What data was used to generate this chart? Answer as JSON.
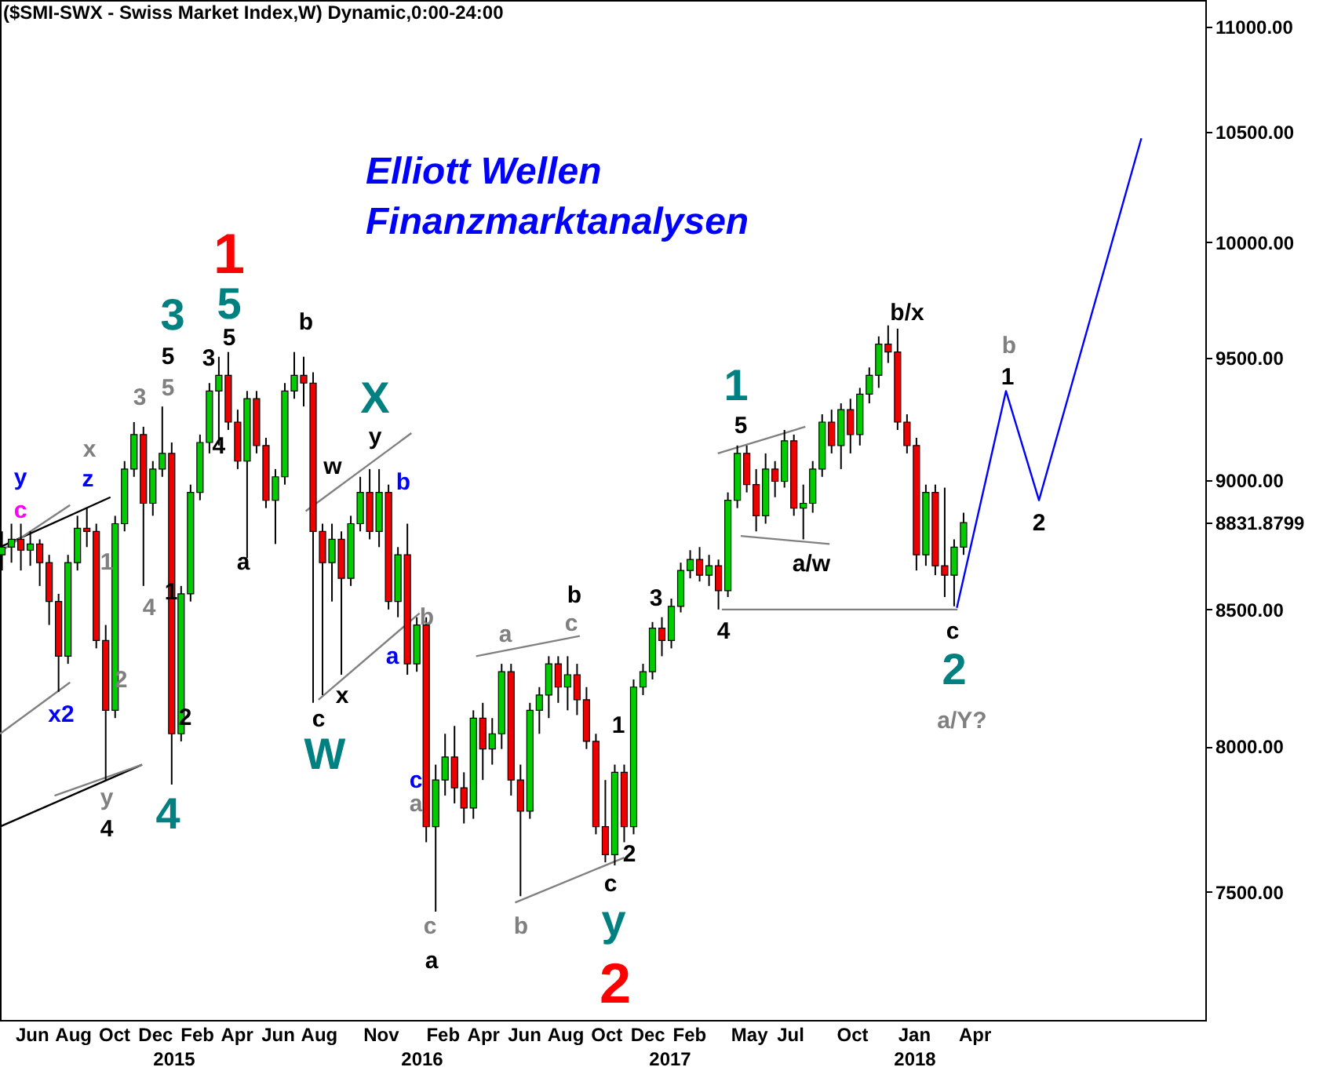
{
  "chart_data": {
    "type": "candlestick",
    "title": "($SMI-SWX - Swiss Market Index,W) Dynamic,0:00-24:00",
    "log": true,
    "grid": false,
    "xlim": [
      "2014-04-15",
      "2019-03-10"
    ],
    "xticks": [
      {
        "value": "2014-06-01",
        "label": "Jun"
      },
      {
        "value": "2014-08-01",
        "label": "Aug"
      },
      {
        "value": "2014-10-01",
        "label": "Oct"
      },
      {
        "value": "2014-12-01",
        "label": "Dec"
      },
      {
        "value": "2015-02-01",
        "label": "Feb"
      },
      {
        "value": "2015-04-01",
        "label": "Apr"
      },
      {
        "value": "2015-06-01",
        "label": "Jun"
      },
      {
        "value": "2015-08-01",
        "label": "Aug"
      },
      {
        "value": "2015-11-01",
        "label": "Nov"
      },
      {
        "value": "2016-02-01",
        "label": "Feb"
      },
      {
        "value": "2016-04-01",
        "label": "Apr"
      },
      {
        "value": "2016-06-01",
        "label": "Jun"
      },
      {
        "value": "2016-08-01",
        "label": "Aug"
      },
      {
        "value": "2016-10-01",
        "label": "Oct"
      },
      {
        "value": "2016-12-01",
        "label": "Dec"
      },
      {
        "value": "2017-02-01",
        "label": "Feb"
      },
      {
        "value": "2017-05-01",
        "label": "May"
      },
      {
        "value": "2017-07-01",
        "label": "Jul"
      },
      {
        "value": "2017-10-01",
        "label": "Oct"
      },
      {
        "value": "2018-01-01",
        "label": "Jan"
      },
      {
        "value": "2018-04-01",
        "label": "Apr"
      }
    ],
    "ylim": [
      7087,
      11131
    ],
    "yticks": [
      {
        "value": 7500,
        "label": "7500.00"
      },
      {
        "value": 8000,
        "label": "8000.00"
      },
      {
        "value": 8500,
        "label": "8500.00"
      },
      {
        "value": 8831.8799,
        "label": "8831.8799"
      },
      {
        "value": 9000,
        "label": "9000.00"
      },
      {
        "value": 9500,
        "label": "9500.00"
      },
      {
        "value": 10000,
        "label": "10000.00"
      },
      {
        "value": 10500,
        "label": "10500.00"
      },
      {
        "value": 11000,
        "label": "11000.00"
      }
    ],
    "series": [
      {
        "type": "line",
        "color": "#000000",
        "x": [
          "2014-04-15",
          "2014-09-26"
        ],
        "values": [
          8737,
          8932
        ]
      },
      {
        "type": "line",
        "color": "#808080",
        "x": [
          "2014-04-15",
          "2014-07-28"
        ],
        "values": [
          8719,
          8901
        ]
      },
      {
        "type": "line",
        "color": "#000000",
        "x": [
          "2014-04-15",
          "2014-11-12"
        ],
        "values": [
          7720,
          7935
        ]
      },
      {
        "type": "line",
        "color": "#808080",
        "x": [
          "2014-04-15",
          "2014-07-28"
        ],
        "values": [
          8044,
          8229
        ]
      },
      {
        "type": "line",
        "color": "#808080",
        "x": [
          "2014-07-05",
          "2014-11-12"
        ],
        "values": [
          7827,
          7935
        ]
      },
      {
        "type": "line",
        "color": "#808080",
        "x": [
          "2015-07-13",
          "2015-12-17"
        ],
        "values": [
          8877,
          9189
        ]
      },
      {
        "type": "line",
        "color": "#808080",
        "x": [
          "2015-08-01",
          "2015-12-29"
        ],
        "values": [
          8166,
          8485
        ]
      },
      {
        "type": "line",
        "color": "#808080",
        "x": [
          "2016-03-22",
          "2016-08-23"
        ],
        "values": [
          8325,
          8400
        ]
      },
      {
        "type": "line",
        "color": "#808080",
        "x": [
          "2016-05-19",
          "2016-10-28"
        ],
        "values": [
          7465,
          7615
        ]
      },
      {
        "type": "line",
        "color": "#808080",
        "x": [
          "2017-03-16",
          "2017-07-24"
        ],
        "values": [
          9107,
          9215
        ]
      },
      {
        "type": "line",
        "color": "#808080",
        "x": [
          "2017-04-19",
          "2017-08-29"
        ],
        "values": [
          8780,
          8749
        ]
      },
      {
        "type": "line",
        "color": "#808080",
        "x": [
          "2017-03-22",
          "2018-03-07"
        ],
        "values": [
          8499,
          8499
        ]
      },
      {
        "type": "line",
        "color": "#0000ff",
        "x": [
          "2018-03-06",
          "2018-05-18",
          "2018-07-06",
          "2018-12-05"
        ],
        "values": [
          8505,
          9362,
          8920,
          10470
        ]
      },
      {
        "x": [
          "2014-04-18",
          "2014-05-02",
          "2014-05-16",
          "2014-05-30",
          "2014-06-13",
          "2014-06-27",
          "2014-07-11",
          "2014-07-25",
          "2014-08-08",
          "2014-08-22",
          "2014-09-05",
          "2014-09-19",
          "2014-10-03",
          "2014-10-17",
          "2014-10-31",
          "2014-11-14",
          "2014-11-28",
          "2014-12-12",
          "2014-12-26",
          "2015-01-09",
          "2015-01-23",
          "2015-02-06",
          "2015-02-20",
          "2015-03-06",
          "2015-03-20",
          "2015-04-03",
          "2015-04-17",
          "2015-05-01",
          "2015-05-15",
          "2015-05-29",
          "2015-06-12",
          "2015-06-26",
          "2015-07-10",
          "2015-07-24",
          "2015-08-07",
          "2015-08-21",
          "2015-09-04",
          "2015-09-18",
          "2015-10-02",
          "2015-10-16",
          "2015-10-30",
          "2015-11-13",
          "2015-11-27",
          "2015-12-11",
          "2015-12-25",
          "2016-01-08",
          "2016-01-22",
          "2016-02-05",
          "2016-02-19",
          "2016-03-04",
          "2016-03-18",
          "2016-04-01",
          "2016-04-15",
          "2016-04-29",
          "2016-05-13",
          "2016-05-27",
          "2016-06-10",
          "2016-06-24",
          "2016-07-08",
          "2016-07-22",
          "2016-08-05",
          "2016-08-19",
          "2016-09-02",
          "2016-09-16",
          "2016-09-30",
          "2016-10-14",
          "2016-10-28",
          "2016-11-11",
          "2016-11-25",
          "2016-12-09",
          "2016-12-23",
          "2017-01-06",
          "2017-01-20",
          "2017-02-03",
          "2017-02-17",
          "2017-03-03",
          "2017-03-17",
          "2017-03-31",
          "2017-04-14",
          "2017-04-28",
          "2017-05-12",
          "2017-05-26",
          "2017-06-09",
          "2017-06-23",
          "2017-07-07",
          "2017-07-21",
          "2017-08-04",
          "2017-08-18",
          "2017-09-01",
          "2017-09-15",
          "2017-09-29",
          "2017-10-13",
          "2017-10-27",
          "2017-11-10",
          "2017-11-24",
          "2017-12-08",
          "2017-12-22",
          "2018-01-05",
          "2018-01-19",
          "2018-02-02",
          "2018-02-16",
          "2018-03-02",
          "2018-03-16"
        ],
        "ohlc": [
          [
            8707,
            8798,
            8647,
            8737
          ],
          [
            8737,
            8828,
            8677,
            8767
          ],
          [
            8767,
            8828,
            8647,
            8725
          ],
          [
            8725,
            8798,
            8665,
            8749
          ],
          [
            8749,
            8767,
            8588,
            8677
          ],
          [
            8677,
            8707,
            8441,
            8529
          ],
          [
            8529,
            8558,
            8195,
            8325
          ],
          [
            8325,
            8707,
            8297,
            8677
          ],
          [
            8677,
            8859,
            8647,
            8810
          ],
          [
            8810,
            8889,
            8737,
            8798
          ],
          [
            8798,
            8828,
            8354,
            8383
          ],
          [
            8383,
            8441,
            7881,
            8128
          ],
          [
            8128,
            8859,
            8100,
            8828
          ],
          [
            8828,
            9076,
            8798,
            9044
          ],
          [
            9044,
            9234,
            9013,
            9183
          ],
          [
            9183,
            9215,
            8588,
            8908
          ],
          [
            8908,
            9076,
            8859,
            9044
          ],
          [
            9044,
            9298,
            9013,
            9107
          ],
          [
            9107,
            9151,
            7865,
            8044
          ],
          [
            8044,
            8588,
            8017,
            8558
          ],
          [
            8558,
            8982,
            8529,
            8951
          ],
          [
            8951,
            9183,
            8920,
            9151
          ],
          [
            9151,
            9395,
            9107,
            9362
          ],
          [
            9362,
            9505,
            9139,
            9427
          ],
          [
            9427,
            9525,
            9202,
            9234
          ],
          [
            9234,
            9285,
            9044,
            9076
          ],
          [
            9076,
            9362,
            8695,
            9330
          ],
          [
            9330,
            9362,
            9107,
            9139
          ],
          [
            9139,
            9170,
            8889,
            8920
          ],
          [
            8920,
            9044,
            8749,
            9013
          ],
          [
            9013,
            9395,
            8982,
            9362
          ],
          [
            9362,
            9525,
            9330,
            9427
          ],
          [
            9427,
            9505,
            9298,
            9395
          ],
          [
            9395,
            9440,
            8155,
            8798
          ],
          [
            8798,
            8828,
            8183,
            8677
          ],
          [
            8677,
            8828,
            8529,
            8767
          ],
          [
            8767,
            8798,
            8257,
            8617
          ],
          [
            8617,
            8859,
            8588,
            8828
          ],
          [
            8828,
            9013,
            8798,
            8951
          ],
          [
            8951,
            9044,
            8767,
            8798
          ],
          [
            8798,
            9044,
            8737,
            8951
          ],
          [
            8951,
            8982,
            8499,
            8529
          ],
          [
            8529,
            8737,
            8470,
            8707
          ],
          [
            8707,
            8828,
            8257,
            8297
          ],
          [
            8297,
            8470,
            8268,
            8441
          ],
          [
            8441,
            8470,
            7667,
            7720
          ],
          [
            7720,
            7935,
            7435,
            7881
          ],
          [
            7881,
            8044,
            7827,
            7962
          ],
          [
            7962,
            8072,
            7800,
            7854
          ],
          [
            7854,
            7908,
            7731,
            7784
          ],
          [
            7784,
            8128,
            7747,
            8100
          ],
          [
            8100,
            8155,
            7881,
            7990
          ],
          [
            7990,
            8100,
            7935,
            8044
          ],
          [
            8044,
            8297,
            7990,
            8268
          ],
          [
            8268,
            8297,
            7827,
            7881
          ],
          [
            7881,
            7935,
            7486,
            7773
          ],
          [
            7773,
            8155,
            7747,
            8128
          ],
          [
            8128,
            8212,
            8044,
            8183
          ],
          [
            8183,
            8325,
            8100,
            8297
          ],
          [
            8297,
            8325,
            8155,
            8212
          ],
          [
            8212,
            8325,
            8128,
            8257
          ],
          [
            8257,
            8297,
            8111,
            8166
          ],
          [
            8166,
            8212,
            7990,
            8017
          ],
          [
            8017,
            8044,
            7694,
            7720
          ],
          [
            7720,
            7881,
            7599,
            7625
          ],
          [
            7625,
            7935,
            7589,
            7908
          ],
          [
            7908,
            7935,
            7667,
            7720
          ],
          [
            7720,
            8240,
            7694,
            8212
          ],
          [
            8212,
            8297,
            8183,
            8268
          ],
          [
            8268,
            8452,
            8240,
            8429
          ],
          [
            8429,
            8470,
            8325,
            8383
          ],
          [
            8383,
            8540,
            8354,
            8511
          ],
          [
            8511,
            8677,
            8488,
            8647
          ],
          [
            8647,
            8725,
            8617,
            8689
          ],
          [
            8689,
            8737,
            8605,
            8629
          ],
          [
            8629,
            8707,
            8588,
            8665
          ],
          [
            8665,
            8689,
            8499,
            8570
          ],
          [
            8570,
            8951,
            8546,
            8920
          ],
          [
            8920,
            9139,
            8889,
            9107
          ],
          [
            9107,
            9139,
            8951,
            8982
          ],
          [
            8982,
            9044,
            8798,
            8859
          ],
          [
            8859,
            9107,
            8828,
            9044
          ],
          [
            9044,
            9076,
            8932,
            8995
          ],
          [
            8995,
            9202,
            8970,
            9158
          ],
          [
            9158,
            9183,
            8859,
            8889
          ],
          [
            8889,
            8982,
            8767,
            8908
          ],
          [
            8908,
            9076,
            8871,
            9044
          ],
          [
            9044,
            9266,
            9013,
            9234
          ],
          [
            9234,
            9285,
            9107,
            9139
          ],
          [
            9139,
            9311,
            9044,
            9285
          ],
          [
            9285,
            9330,
            9107,
            9183
          ],
          [
            9183,
            9375,
            9139,
            9349
          ],
          [
            9349,
            9460,
            9311,
            9427
          ],
          [
            9427,
            9591,
            9375,
            9558
          ],
          [
            9558,
            9638,
            9479,
            9525
          ],
          [
            9525,
            9624,
            9202,
            9234
          ],
          [
            9234,
            9266,
            9107,
            9139
          ],
          [
            9139,
            9170,
            8647,
            8707
          ],
          [
            8707,
            8982,
            8665,
            8951
          ],
          [
            8951,
            8982,
            8629,
            8665
          ],
          [
            8665,
            8970,
            8546,
            8629
          ],
          [
            8629,
            8767,
            8511,
            8737
          ],
          [
            8737,
            8871,
            8707,
            8831.88
          ]
        ],
        "colors": [
          "#00cc00",
          "#00cc00",
          "#ee0000",
          "#00cc00",
          "#ee0000",
          "#ee0000",
          "#ee0000",
          "#00cc00",
          "#00cc00",
          "#ee0000",
          "#ee0000",
          "#ee0000",
          "#00cc00",
          "#00cc00",
          "#00cc00",
          "#ee0000",
          "#00cc00",
          "#00cc00",
          "#ee0000",
          "#00cc00",
          "#00cc00",
          "#00cc00",
          "#00cc00",
          "#00cc00",
          "#ee0000",
          "#ee0000",
          "#00cc00",
          "#ee0000",
          "#ee0000",
          "#00cc00",
          "#00cc00",
          "#00cc00",
          "#ee0000",
          "#ee0000",
          "#ee0000",
          "#00cc00",
          "#ee0000",
          "#00cc00",
          "#00cc00",
          "#ee0000",
          "#00cc00",
          "#ee0000",
          "#00cc00",
          "#ee0000",
          "#00cc00",
          "#ee0000",
          "#00cc00",
          "#00cc00",
          "#ee0000",
          "#ee0000",
          "#00cc00",
          "#ee0000",
          "#00cc00",
          "#00cc00",
          "#ee0000",
          "#ee0000",
          "#00cc00",
          "#00cc00",
          "#00cc00",
          "#ee0000",
          "#00cc00",
          "#ee0000",
          "#ee0000",
          "#ee0000",
          "#ee0000",
          "#00cc00",
          "#ee0000",
          "#00cc00",
          "#00cc00",
          "#00cc00",
          "#ee0000",
          "#00cc00",
          "#00cc00",
          "#00cc00",
          "#ee0000",
          "#00cc00",
          "#ee0000",
          "#00cc00",
          "#00cc00",
          "#ee0000",
          "#ee0000",
          "#00cc00",
          "#ee0000",
          "#00cc00",
          "#ee0000",
          "#00cc00",
          "#00cc00",
          "#00cc00",
          "#ee0000",
          "#00cc00",
          "#ee0000",
          "#00cc00",
          "#00cc00",
          "#00cc00",
          "#ee0000",
          "#ee0000",
          "#ee0000",
          "#ee0000",
          "#00cc00",
          "#ee0000",
          "#ee0000",
          "#00cc00",
          "#00cc00"
        ]
      }
    ],
    "annotations": [
      "Elliott Wellen",
      "Finanzmarktanalysen",
      "y",
      "c",
      "x",
      "z",
      "x2",
      "1",
      "2",
      "y",
      "4",
      "3",
      "4",
      "5",
      "5",
      "3",
      "1",
      "4",
      "2",
      "1",
      "5",
      "5",
      "3",
      {
        "text": "4",
        "x": "2015-03-06",
        "y": 9139
      },
      "a",
      "b",
      "X",
      "y",
      "w",
      "b",
      "x",
      "c",
      "W",
      "b",
      "a",
      "c",
      "a",
      "c",
      "a",
      "a",
      "c",
      "b",
      "b",
      "1",
      "2",
      "c",
      "y",
      "2",
      "3",
      "4",
      "5",
      "1",
      "a/w",
      "b/x",
      "c",
      "2",
      "a/Y?",
      "b",
      "1",
      "2",
      "2015",
      "2016",
      "2017",
      "2018"
    ]
  }
}
